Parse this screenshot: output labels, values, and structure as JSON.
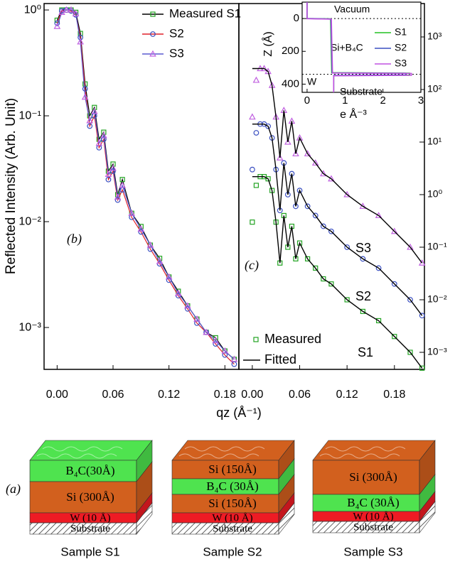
{
  "chart_data": [
    {
      "type": "line",
      "panel_label": "(b)",
      "x_label": "qz (Å⁻¹)",
      "y_label": "Reflected Intensity (Arb. Unit)",
      "log_y": true,
      "legend": "upper right",
      "x": [
        0.0,
        0.005,
        0.01,
        0.015,
        0.02,
        0.025,
        0.03,
        0.035,
        0.04,
        0.045,
        0.05,
        0.055,
        0.06,
        0.065,
        0.07,
        0.08,
        0.09,
        0.1,
        0.11,
        0.12,
        0.13,
        0.14,
        0.15,
        0.16,
        0.17,
        0.18,
        0.19
      ],
      "series": [
        {
          "name": "Measured S1",
          "color": "#22a322",
          "line_color": "#000000",
          "marker": "square",
          "values": [
            0.8,
            1.0,
            1.0,
            1.0,
            0.95,
            0.6,
            0.2,
            0.1,
            0.12,
            0.06,
            0.07,
            0.03,
            0.035,
            0.018,
            0.025,
            0.012,
            0.009,
            0.006,
            0.0045,
            0.003,
            0.0022,
            0.0016,
            0.0012,
            0.0009,
            0.0008,
            0.0006,
            0.0005
          ]
        },
        {
          "name": "S2",
          "color": "#3a4fc1",
          "line_color": "#e0202a",
          "marker": "circle",
          "values": [
            0.75,
            0.98,
            1.0,
            0.98,
            0.9,
            0.55,
            0.18,
            0.08,
            0.1,
            0.05,
            0.06,
            0.025,
            0.03,
            0.016,
            0.02,
            0.011,
            0.008,
            0.0055,
            0.004,
            0.0028,
            0.002,
            0.0015,
            0.0011,
            0.0009,
            0.0007,
            0.00055,
            0.00045
          ]
        },
        {
          "name": "S3",
          "color": "#c060e0",
          "line_color": "#5a5ad0",
          "marker": "triangle",
          "values": [
            0.7,
            0.95,
            1.0,
            1.0,
            0.92,
            0.5,
            0.15,
            0.09,
            0.11,
            0.055,
            0.065,
            0.028,
            0.032,
            0.017,
            0.022,
            0.012,
            0.0085,
            0.006,
            0.0042,
            0.003,
            0.0021,
            0.0016,
            0.0012,
            0.0009,
            0.00075,
            0.0006,
            0.0005
          ]
        }
      ],
      "xlim": [
        -0.014,
        0.195
      ],
      "xticks": [
        {
          "value": 0,
          "label": "0.00"
        },
        {
          "value": 0.06,
          "label": "0.06"
        },
        {
          "value": 0.12,
          "label": "0.12"
        },
        {
          "value": 0.18,
          "label": "0.18"
        }
      ],
      "ylim": [
        0.000402,
        1.15
      ],
      "yticks": [
        {
          "value": 1,
          "label": "10⁰"
        },
        {
          "value": 0.1,
          "label": "10⁻¹"
        },
        {
          "value": 0.01,
          "label": "10⁻²"
        },
        {
          "value": 0.001,
          "label": "10⁻³"
        }
      ]
    },
    {
      "type": "line",
      "panel_label": "(c)",
      "log_y": true,
      "legend": [
        "Measured",
        "Fitted"
      ],
      "fit_color": "#000000",
      "x": [
        0.0,
        0.005,
        0.01,
        0.015,
        0.02,
        0.025,
        0.03,
        0.035,
        0.04,
        0.045,
        0.05,
        0.055,
        0.06,
        0.07,
        0.08,
        0.09,
        0.1,
        0.12,
        0.14,
        0.16,
        0.18,
        0.2,
        0.215
      ],
      "series": [
        {
          "name": "S1",
          "color": "#22a322",
          "marker": "square",
          "values": [
            0.3,
            1.5,
            2.2,
            2.2,
            2.0,
            1.2,
            0.3,
            0.05,
            0.4,
            0.1,
            0.25,
            0.06,
            0.12,
            0.06,
            0.04,
            0.025,
            0.02,
            0.01,
            0.006,
            0.004,
            0.002,
            0.001,
            0.0005
          ],
          "fitted_values": [
            2.2,
            2.2,
            2.2,
            2.2,
            2.0,
            1.2,
            0.3,
            0.05,
            0.4,
            0.1,
            0.25,
            0.06,
            0.12,
            0.06,
            0.04,
            0.025,
            0.02,
            0.01,
            0.006,
            0.004,
            0.002,
            0.001,
            0.0005
          ]
        },
        {
          "name": "S2",
          "color": "#3a4fc1",
          "marker": "circle",
          "values": [
            3,
            15,
            22,
            22,
            20,
            12,
            3,
            0.5,
            4,
            1,
            2.5,
            0.6,
            1.2,
            0.6,
            0.4,
            0.25,
            0.2,
            0.1,
            0.06,
            0.04,
            0.02,
            0.01,
            0.005
          ],
          "fitted_values": [
            22,
            22,
            22,
            22,
            20,
            12,
            3,
            0.5,
            4,
            1,
            2.5,
            0.6,
            1.2,
            0.6,
            0.4,
            0.25,
            0.2,
            0.1,
            0.06,
            0.04,
            0.02,
            0.01,
            0.005
          ]
        },
        {
          "name": "S3",
          "color": "#c060e0",
          "marker": "triangle",
          "values": [
            30,
            150,
            250,
            250,
            220,
            120,
            30,
            5,
            40,
            10,
            25,
            6,
            12,
            6,
            4,
            2.5,
            2,
            1,
            0.6,
            0.4,
            0.2,
            0.1,
            0.05
          ],
          "fitted_values": [
            250,
            250,
            250,
            250,
            220,
            120,
            30,
            5,
            40,
            10,
            25,
            6,
            12,
            6,
            4,
            2.5,
            2,
            1,
            0.6,
            0.4,
            0.2,
            0.1,
            0.05
          ]
        }
      ],
      "xlim": [
        -0.017,
        0.218
      ],
      "xticks": [
        {
          "value": 0,
          "label": "0.00"
        },
        {
          "value": 0.06,
          "label": "0.06"
        },
        {
          "value": 0.12,
          "label": "0.12"
        },
        {
          "value": 0.18,
          "label": "0.18"
        }
      ],
      "ylim": [
        0.000474,
        4315
      ],
      "yticks": [
        {
          "value": 1000,
          "label": "10³"
        },
        {
          "value": 100,
          "label": "10²"
        },
        {
          "value": 10,
          "label": "10¹"
        },
        {
          "value": 1,
          "label": "10⁰"
        },
        {
          "value": 0.1,
          "label": "10⁻¹"
        },
        {
          "value": 0.01,
          "label": "10⁻²"
        },
        {
          "value": 0.001,
          "label": "10⁻³"
        }
      ]
    },
    {
      "type": "line",
      "x_label": "e Å⁻³",
      "y_label": "Z (Å)",
      "y_inverted": true,
      "series": [
        {
          "name": "S1",
          "color": "#22c022",
          "x": [
            0,
            0,
            0.62,
            0.65,
            2.7,
            2.7,
            0.7,
            0.7
          ],
          "values": [
            -100,
            0,
            2,
            330,
            333,
            345,
            348,
            450
          ]
        },
        {
          "name": "S2",
          "color": "#3a4fc1",
          "x": [
            0,
            0,
            0.63,
            0.66,
            2.6,
            2.6,
            0.7,
            0.7
          ],
          "values": [
            -100,
            0,
            3,
            331,
            334,
            344,
            347,
            450
          ]
        },
        {
          "name": "S3",
          "color": "#c050e0",
          "x": [
            0,
            0,
            0.64,
            0.67,
            2.75,
            2.75,
            0.7,
            0.7
          ],
          "values": [
            -100,
            1,
            4,
            332,
            335,
            346,
            349,
            450
          ]
        }
      ],
      "annotations": [
        "Vacuum",
        "Si+B₄C",
        "W",
        "Substrate"
      ],
      "hlines": [
        0,
        340
      ],
      "xlim": [
        -0.13,
        3.0
      ],
      "xticks": [
        0,
        1,
        2,
        3
      ],
      "ylim": [
        -100,
        450
      ],
      "yticks": [
        0,
        200,
        400
      ]
    }
  ],
  "diagram": {
    "label": "(a)",
    "samples": [
      {
        "name": "Sample S1",
        "layers": [
          {
            "label": "B₄C(30Å)",
            "color": "#4fe34f"
          },
          {
            "label": "Si (300Å)",
            "color": "#d2601e"
          },
          {
            "label": "W (10 Å)",
            "color": "#ee1b24"
          },
          {
            "label": "Substrate",
            "color": "#d8d8d8"
          }
        ]
      },
      {
        "name": "Sample S2",
        "layers": [
          {
            "label": "Si (150Å)",
            "color": "#d2601e"
          },
          {
            "label": "B₄C (30Å)",
            "color": "#4fe34f"
          },
          {
            "label": "Si (150Å)",
            "color": "#d2601e"
          },
          {
            "label": "W (10 Å)",
            "color": "#ee1b24"
          },
          {
            "label": "Substrate",
            "color": "#d8d8d8"
          }
        ]
      },
      {
        "name": "Sample S3",
        "layers": [
          {
            "label": "Si (300Å)",
            "color": "#d2601e"
          },
          {
            "label": "B₄C (30Å)",
            "color": "#4fe34f"
          },
          {
            "label": "W (10 Å)",
            "color": "#ee1b24"
          },
          {
            "label": "Substrate",
            "color": "#d8d8d8"
          }
        ]
      }
    ]
  }
}
